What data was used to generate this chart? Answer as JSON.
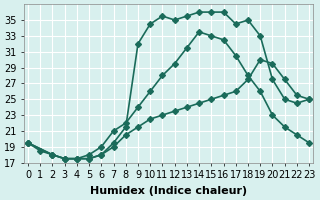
{
  "xlabel": "Humidex (Indice chaleur)",
  "bg_color": "#d8f0ee",
  "grid_color": "#ffffff",
  "line_color": "#1a6b5a",
  "marker": "D",
  "markersize": 3,
  "linewidth": 1.2,
  "series1_x": [
    0,
    1,
    2,
    3,
    4,
    5,
    6,
    7,
    8,
    9,
    10,
    11,
    12,
    13,
    14,
    15,
    16,
    17,
    18,
    19,
    20,
    21,
    22,
    23
  ],
  "series1_y": [
    19.5,
    18.5,
    18.0,
    17.5,
    17.5,
    18.0,
    19.0,
    21.0,
    22.0,
    24.0,
    26.0,
    28.0,
    29.5,
    31.5,
    33.5,
    33.0,
    32.5,
    30.5,
    28.0,
    26.0,
    23.0,
    21.5,
    20.5,
    19.5
  ],
  "series2_x": [
    0,
    2,
    3,
    4,
    5,
    6,
    7,
    8,
    9,
    10,
    11,
    12,
    13,
    14,
    15,
    16,
    17,
    18,
    19,
    20,
    21,
    22,
    23
  ],
  "series2_y": [
    19.5,
    18.0,
    17.5,
    17.5,
    17.5,
    18.0,
    19.5,
    21.5,
    32.0,
    34.5,
    35.5,
    35.0,
    35.5,
    36.0,
    36.0,
    36.0,
    34.5,
    35.0,
    33.0,
    27.5,
    25.0,
    24.5,
    25.0
  ],
  "series3_x": [
    0,
    2,
    3,
    4,
    5,
    6,
    7,
    8,
    9,
    10,
    11,
    12,
    13,
    14,
    15,
    16,
    17,
    18,
    19,
    20,
    21,
    22,
    23
  ],
  "series3_y": [
    19.5,
    18.0,
    17.5,
    17.5,
    17.5,
    18.0,
    19.0,
    20.5,
    21.5,
    22.5,
    23.0,
    23.5,
    24.0,
    24.5,
    25.0,
    25.5,
    26.0,
    27.5,
    30.0,
    29.5,
    27.5,
    25.5,
    25.0
  ],
  "ylim": [
    17,
    37
  ],
  "yticks": [
    17,
    19,
    21,
    23,
    25,
    27,
    29,
    31,
    33,
    35
  ],
  "xlim": [
    0,
    23
  ],
  "xticks": [
    0,
    1,
    2,
    3,
    4,
    5,
    6,
    7,
    8,
    9,
    10,
    11,
    12,
    13,
    14,
    15,
    16,
    17,
    18,
    19,
    20,
    21,
    22,
    23
  ],
  "xlabel_fontsize": 8,
  "tick_fontsize": 7,
  "title_fontsize": 8
}
